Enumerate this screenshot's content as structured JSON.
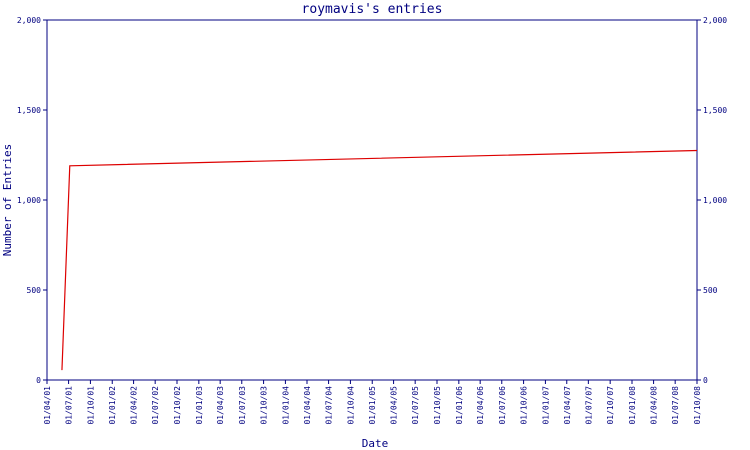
{
  "chart_data": {
    "type": "line",
    "title": "roymavis's entries",
    "x_label": "Date",
    "y_label": "Number of Entries",
    "x": [
      "03/06/01",
      "06/07/01",
      "01/10/08"
    ],
    "values": [
      55,
      1190,
      1275
    ],
    "color": "#dd0000",
    "ylim": [
      0,
      2000
    ],
    "yticks": [
      0,
      500,
      {
        "value": 1000,
        "label": "1,000"
      },
      {
        "value": 1500,
        "label": "1,500"
      },
      {
        "value": 2000,
        "label": "2,000"
      }
    ],
    "xlim": [
      "01/04/01",
      "01/10/08"
    ],
    "xticks": [
      "01/04/01",
      "01/07/01",
      "01/10/01",
      "01/01/02",
      "01/04/02",
      "01/07/02",
      "01/10/02",
      "01/01/03",
      "01/04/03",
      "01/07/03",
      "01/10/03",
      "01/01/04",
      "01/04/04",
      "01/07/04",
      "01/10/04",
      "01/01/05",
      "01/04/05",
      "01/07/05",
      "01/10/05",
      "01/01/06",
      "01/04/06",
      "01/07/06",
      "01/10/06",
      "01/01/07",
      "01/04/07",
      "01/07/07",
      "01/10/07",
      "01/01/08",
      "01/04/08",
      "01/07/08",
      "01/10/08"
    ]
  }
}
